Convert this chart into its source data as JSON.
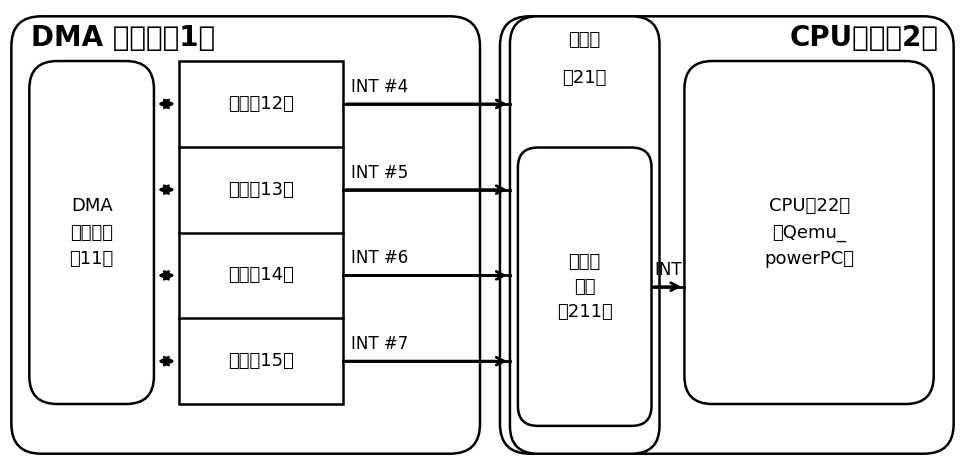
{
  "bg_color": "#ffffff",
  "border_color": "#000000",
  "title_dma": "DMA 控制器（1）",
  "title_cpu": "CPU单元（2）",
  "label_dma_exec": "DMA\n执行单元\n（11）",
  "label_channels": [
    "通道（12）",
    "通道（13）",
    "通道（14）",
    "通道（15）"
  ],
  "label_int": [
    "INT #4",
    "INT #5",
    "INT #6",
    "INT #7"
  ],
  "label_middleware_line1": "中间件",
  "label_middleware_line2": "（21）",
  "label_interrupt_ctrl": "中断控\n制器\n（211）",
  "label_cpu_unit": "CPU（22）\n（Qemu_\npowerPC）",
  "label_int_arrow": "INT",
  "font_size_title": 20,
  "font_size_label": 13,
  "font_size_int": 12
}
